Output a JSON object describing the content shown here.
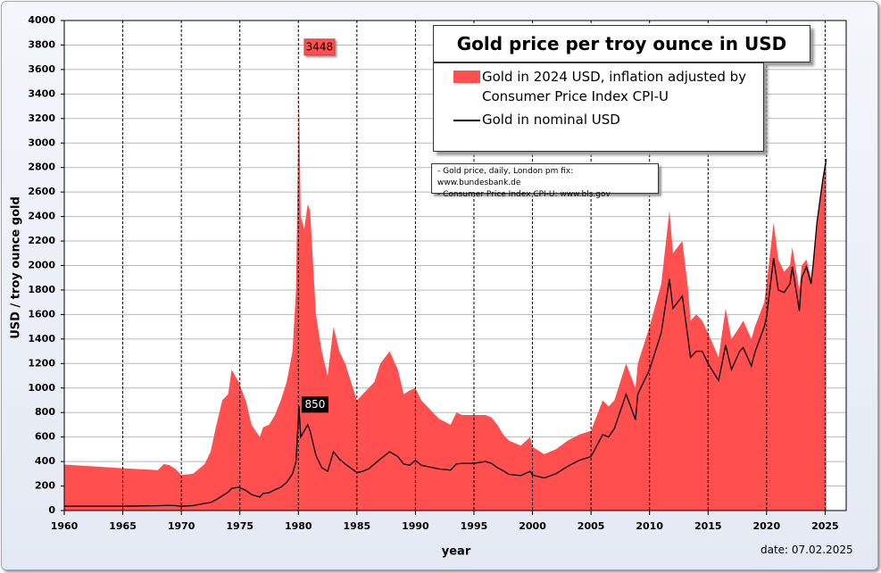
{
  "chart_data": {
    "type": "area-line",
    "title": "Gold price per troy ounce in USD",
    "x_label": "year",
    "y_label": "USD / troy ounce gold",
    "date_note": "date:  07.02.2025",
    "sources": [
      "- Gold price, daily, London pm fix: www.bundesbank.de",
      "- Consumer Price Index CPI-U: www.bls.gov"
    ],
    "xlim": [
      1960,
      2026.8
    ],
    "ylim": [
      0,
      4000
    ],
    "xticks": [
      1960,
      1965,
      1970,
      1975,
      1980,
      1985,
      1990,
      1995,
      2000,
      2005,
      2010,
      2015,
      2020,
      2025
    ],
    "yticks": [
      0,
      200,
      400,
      600,
      800,
      1000,
      1200,
      1400,
      1600,
      1800,
      2000,
      2200,
      2400,
      2600,
      2800,
      3000,
      3200,
      3400,
      3600,
      3800,
      4000
    ],
    "grid": true,
    "x": [
      1960,
      1965,
      1968,
      1968.5,
      1969,
      1969.5,
      1970,
      1971,
      1972,
      1972.5,
      1973,
      1973.5,
      1974,
      1974.3,
      1974.9,
      1975.5,
      1976,
      1976.7,
      1977,
      1977.5,
      1978,
      1978.5,
      1979,
      1979.5,
      1979.8,
      1980.05,
      1980.2,
      1980.5,
      1980.8,
      1981,
      1981.5,
      1982,
      1982.5,
      1983,
      1983.5,
      1984,
      1985,
      1985.5,
      1986,
      1986.5,
      1987,
      1987.8,
      1988.5,
      1989,
      1989.5,
      1990,
      1990.5,
      1991,
      1992,
      1993,
      1993.5,
      1994,
      1995,
      1996,
      1996.5,
      1997,
      1997.5,
      1998,
      1999,
      1999.8,
      2000,
      2001,
      2002,
      2003,
      2004,
      2005,
      2006,
      2006.5,
      2007,
      2008,
      2008.8,
      2009,
      2010,
      2011,
      2011.7,
      2012,
      2012.8,
      2013.3,
      2013.5,
      2014,
      2014.5,
      2015,
      2015.9,
      2016.5,
      2017,
      2017.7,
      2018,
      2018.7,
      2019,
      2019.8,
      2020,
      2020.6,
      2021,
      2021.5,
      2022,
      2022.2,
      2022.8,
      2023,
      2023.4,
      2023.8,
      2024,
      2024.3,
      2024.8,
      2025.1
    ],
    "series": [
      {
        "name": "Gold in 2024 USD, inflation adjusted by Consumer Price Index CPI-U",
        "color": "#ff4f4f",
        "values": [
          375,
          345,
          330,
          380,
          370,
          340,
          290,
          300,
          380,
          480,
          700,
          900,
          950,
          1150,
          1050,
          900,
          700,
          600,
          680,
          700,
          780,
          900,
          1050,
          1300,
          1800,
          3448,
          2400,
          2300,
          2500,
          2450,
          1600,
          1300,
          1100,
          1500,
          1300,
          1200,
          900,
          950,
          1000,
          1050,
          1200,
          1300,
          1150,
          950,
          980,
          1000,
          900,
          850,
          750,
          700,
          800,
          780,
          780,
          780,
          760,
          700,
          620,
          570,
          530,
          600,
          520,
          460,
          500,
          570,
          620,
          650,
          900,
          850,
          900,
          1200,
          1000,
          1200,
          1500,
          1850,
          2450,
          2100,
          2200,
          1800,
          1550,
          1600,
          1550,
          1450,
          1250,
          1650,
          1400,
          1500,
          1550,
          1400,
          1500,
          1700,
          1850,
          2350,
          2050,
          1950,
          2000,
          2150,
          1800,
          2000,
          2050,
          1900,
          2050,
          2350,
          2700,
          2870
        ]
      },
      {
        "name": "Gold in nominal USD",
        "color": "#000000",
        "values": [
          35,
          35,
          39,
          41,
          42,
          40,
          35,
          40,
          58,
          65,
          90,
          120,
          150,
          180,
          190,
          165,
          130,
          110,
          140,
          145,
          170,
          190,
          230,
          300,
          400,
          850,
          600,
          650,
          700,
          650,
          450,
          350,
          320,
          480,
          420,
          380,
          310,
          320,
          340,
          380,
          420,
          480,
          440,
          380,
          370,
          410,
          370,
          360,
          340,
          330,
          380,
          385,
          385,
          400,
          385,
          350,
          325,
          295,
          285,
          320,
          290,
          265,
          300,
          360,
          410,
          440,
          620,
          600,
          670,
          950,
          740,
          950,
          1150,
          1450,
          1890,
          1650,
          1750,
          1400,
          1250,
          1300,
          1300,
          1200,
          1060,
          1350,
          1150,
          1300,
          1330,
          1180,
          1290,
          1500,
          1580,
          2060,
          1800,
          1780,
          1850,
          1990,
          1630,
          1900,
          1990,
          1850,
          2030,
          2350,
          2700,
          2870
        ]
      }
    ],
    "annotations": [
      {
        "x": 1980.05,
        "value": 3448,
        "series": 0
      },
      {
        "x": 1980.05,
        "value": 850,
        "series": 1
      }
    ]
  }
}
